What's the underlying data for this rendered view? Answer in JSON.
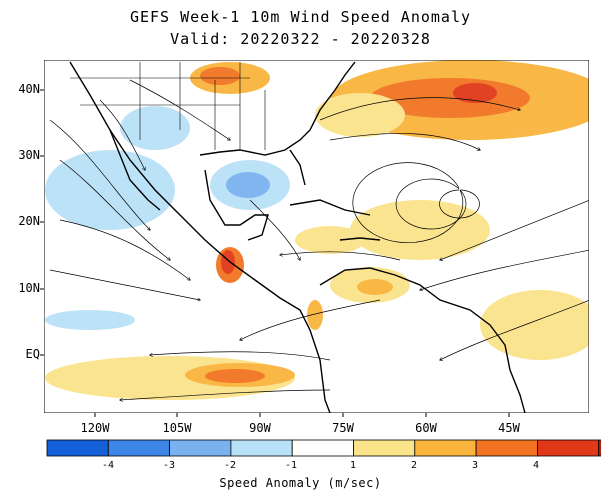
{
  "title_line1": "GEFS Week-1 10m Wind Speed Anomaly",
  "title_line2": "Valid: 20220322 - 20220328",
  "lat_labels": [
    "40N",
    "30N",
    "20N",
    "10N",
    "EQ"
  ],
  "lon_labels": [
    "120W",
    "105W",
    "90W",
    "75W",
    "60W",
    "45W"
  ],
  "colorbar": {
    "ticks": [
      "-4",
      "-3",
      "-2",
      "-1",
      "1",
      "2",
      "3",
      "4"
    ],
    "title": "Speed Anomaly (m/sec)",
    "colors": [
      "#1560d8",
      "#3d86e8",
      "#7ab2f0",
      "#b9e1f7",
      "#ffffff",
      "#fbe38a",
      "#f9b43d",
      "#f27322",
      "#e03818",
      "#b81c12"
    ]
  },
  "map_colors": {
    "land_outline": "#000000",
    "stream": "#000000"
  }
}
